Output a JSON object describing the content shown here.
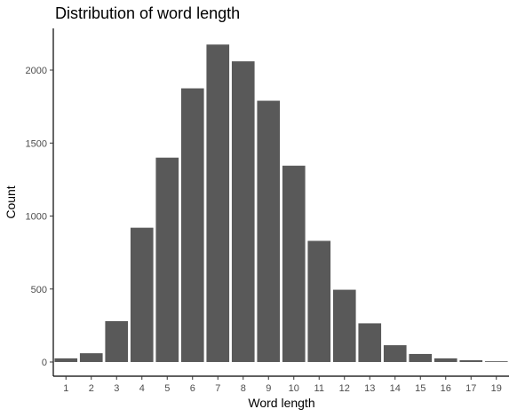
{
  "chart_data": {
    "type": "bar",
    "title": "Distribution of word length",
    "xlabel": "Word length",
    "ylabel": "Count",
    "categories": [
      "1",
      "2",
      "3",
      "4",
      "5",
      "6",
      "7",
      "8",
      "9",
      "10",
      "11",
      "12",
      "13",
      "14",
      "15",
      "16",
      "17",
      "19"
    ],
    "values": [
      25,
      60,
      280,
      920,
      1400,
      1875,
      2175,
      2060,
      1790,
      1345,
      830,
      495,
      265,
      115,
      55,
      25,
      12,
      5
    ],
    "ylim": [
      0,
      2300
    ],
    "yticks": [
      0,
      500,
      1000,
      1500,
      2000
    ],
    "bar_color": "#595959",
    "grid": false,
    "legend": "none"
  }
}
